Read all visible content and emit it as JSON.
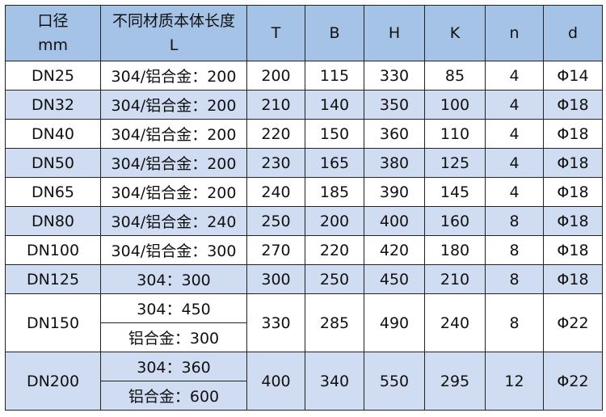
{
  "header": {
    "diameter": [
      "口径",
      "mm"
    ],
    "length": [
      "不同材质本体长度",
      "L"
    ],
    "cols": [
      "T",
      "B",
      "H",
      "K",
      "n",
      "d"
    ]
  },
  "colors": {
    "header_bg": "#a5c3e6",
    "alt_row_bg": "#cfdcf2",
    "border": "#222222"
  },
  "rows": [
    {
      "dn": "DN25",
      "l": "304/铝合金：200",
      "T": "200",
      "B": "115",
      "H": "330",
      "K": "85",
      "n": "4",
      "d": "Φ14"
    },
    {
      "dn": "DN32",
      "l": "304/铝合金：200",
      "T": "210",
      "B": "140",
      "H": "350",
      "K": "100",
      "n": "4",
      "d": "Φ18"
    },
    {
      "dn": "DN40",
      "l": "304/铝合金：200",
      "T": "220",
      "B": "150",
      "H": "360",
      "K": "110",
      "n": "4",
      "d": "Φ18"
    },
    {
      "dn": "DN50",
      "l": "304/铝合金：200",
      "T": "230",
      "B": "165",
      "H": "380",
      "K": "125",
      "n": "4",
      "d": "Φ18"
    },
    {
      "dn": "DN65",
      "l": "304/铝合金：200",
      "T": "240",
      "B": "185",
      "H": "390",
      "K": "145",
      "n": "4",
      "d": "Φ18"
    },
    {
      "dn": "DN80",
      "l": "304/铝合金：240",
      "T": "250",
      "B": "200",
      "H": "400",
      "K": "160",
      "n": "8",
      "d": "Φ18"
    },
    {
      "dn": "DN100",
      "l": "304/铝合金：300",
      "T": "270",
      "B": "220",
      "H": "420",
      "K": "180",
      "n": "8",
      "d": "Φ18"
    },
    {
      "dn": "DN125",
      "l": "304：300",
      "T": "300",
      "B": "250",
      "H": "450",
      "K": "210",
      "n": "8",
      "d": "Φ18"
    }
  ],
  "split_rows": [
    {
      "dn": "DN150",
      "l1": "304：450",
      "l2": "铝合金：300",
      "T": "330",
      "B": "285",
      "H": "490",
      "K": "240",
      "n": "8",
      "d": "Φ22"
    },
    {
      "dn": "DN200",
      "l1": "304：360",
      "l2": "铝合金：600",
      "T": "400",
      "B": "340",
      "H": "550",
      "K": "295",
      "n": "12",
      "d": "Φ22"
    }
  ]
}
